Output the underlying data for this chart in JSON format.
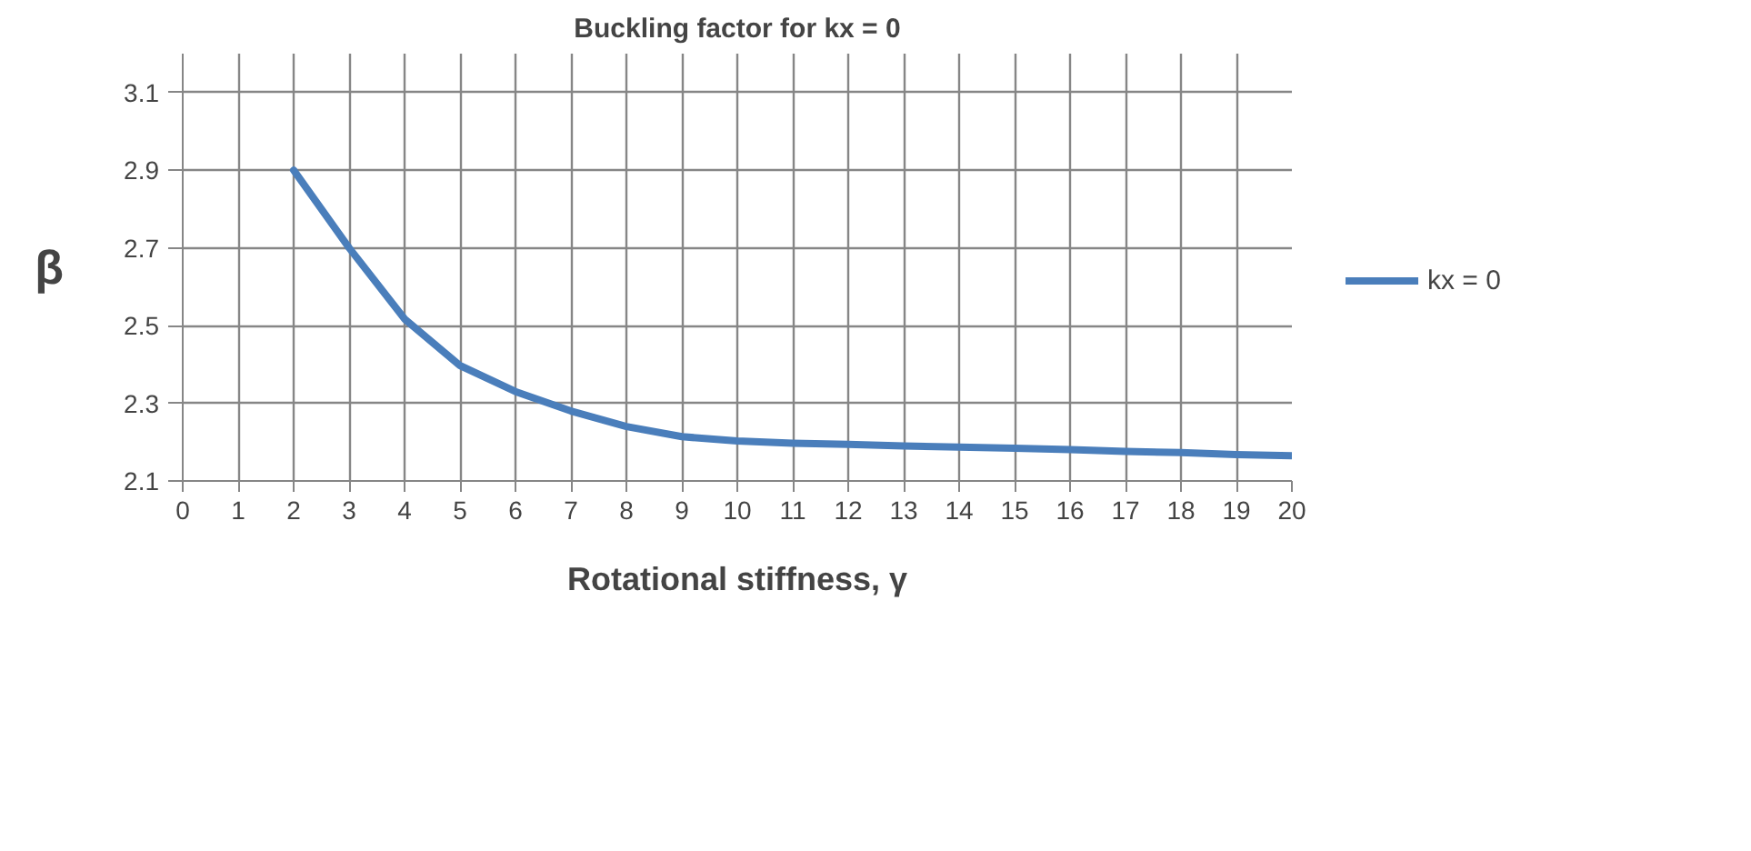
{
  "chart_data": {
    "type": "line",
    "title": "Buckling factor for kx = 0",
    "xlabel": "Rotational stiffness, γ",
    "ylabel": "β",
    "x": [
      2,
      3,
      4,
      5,
      6,
      7,
      8,
      9,
      10,
      11,
      12,
      13,
      14,
      15,
      16,
      17,
      18,
      19,
      20
    ],
    "series": [
      {
        "name": "kx = 0",
        "color": "#4a7ebb",
        "values": [
          2.9,
          2.7,
          2.517,
          2.397,
          2.33,
          2.28,
          2.24,
          2.214,
          2.203,
          2.197,
          2.194,
          2.19,
          2.187,
          2.184,
          2.181,
          2.176,
          2.173,
          2.168,
          2.165
        ]
      }
    ],
    "xlim": [
      0,
      20
    ],
    "xticks": [
      0,
      1,
      2,
      3,
      4,
      5,
      6,
      7,
      8,
      9,
      10,
      11,
      12,
      13,
      14,
      15,
      16,
      17,
      18,
      19,
      20
    ],
    "ylim": [
      2.1,
      3.2
    ],
    "yticks": [
      2.1,
      2.3,
      2.5,
      2.7,
      2.9,
      3.1
    ],
    "grid": true,
    "legend": "right",
    "marker": "none",
    "line_style": "solid"
  }
}
